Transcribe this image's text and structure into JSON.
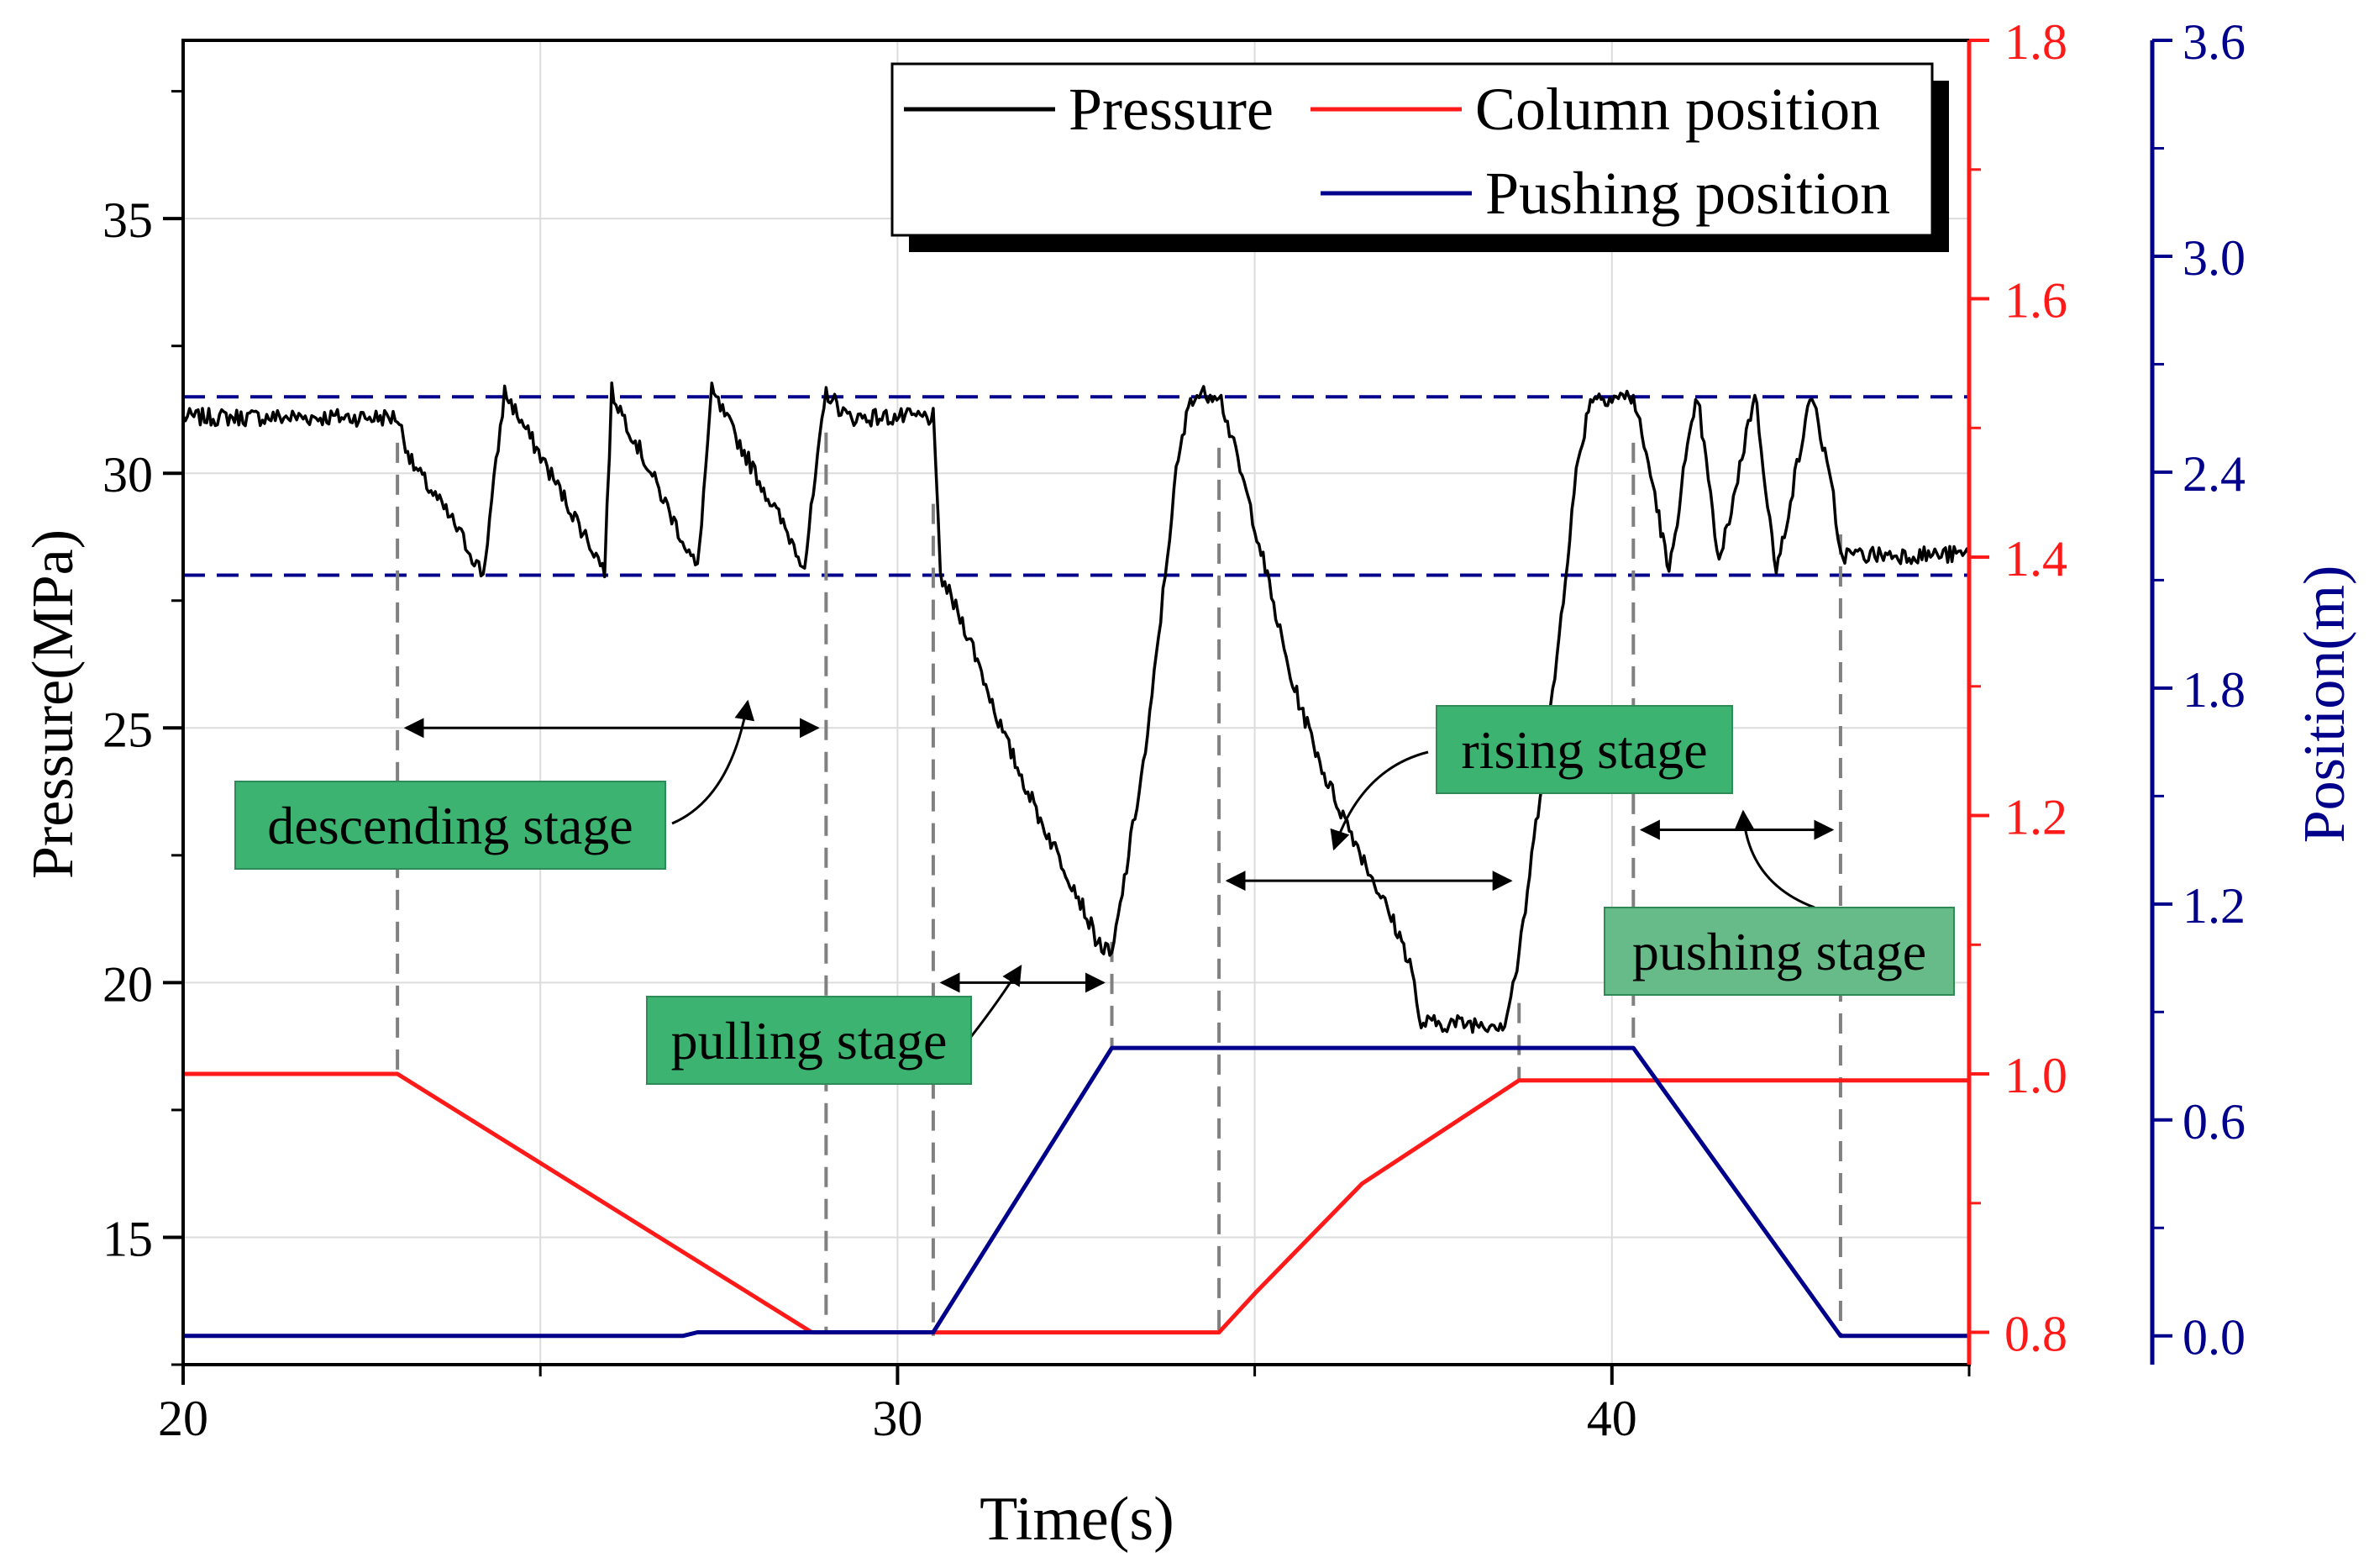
{
  "chart_data": {
    "type": "line",
    "xlabel": "Time(s)",
    "ylabel_left": "Pressure(MPa)",
    "ylabel_right": "Position(m)",
    "xlim": [
      20,
      45
    ],
    "ylim_left": [
      12.5,
      38.5
    ],
    "ylim_right_red": [
      0.775,
      1.8
    ],
    "ylim_right_blue": [
      -0.08,
      3.6
    ],
    "x_ticks": [
      20,
      30,
      40
    ],
    "y_ticks_left": [
      15,
      20,
      25,
      30,
      35
    ],
    "y_ticks_right_red": [
      "0.8",
      "1.0",
      "1.2",
      "1.4",
      "1.6",
      "1.8"
    ],
    "y_ticks_right_blue": [
      "0.0",
      "0.6",
      "1.2",
      "1.8",
      "2.4",
      "3.0",
      "3.6"
    ],
    "colors": {
      "pressure": "#000000",
      "column": "#ff1a1a",
      "pushing": "#00008b",
      "stage_box": "#3cb371",
      "guide": "#808080"
    },
    "series": [
      {
        "name": "Pressure",
        "axis": "left",
        "color": "#000000",
        "points": [
          [
            20,
            31.1
          ],
          [
            23,
            31.1
          ],
          [
            23.2,
            30.2
          ],
          [
            23.8,
            29
          ],
          [
            24.2,
            28
          ],
          [
            24.5,
            31.6
          ],
          [
            25.9,
            28.1
          ],
          [
            26,
            31.6
          ],
          [
            27.2,
            28.1
          ],
          [
            27.4,
            31.6
          ],
          [
            28.7,
            28.2
          ],
          [
            29,
            31.6
          ],
          [
            29.3,
            31.1
          ],
          [
            30.5,
            31.1
          ],
          [
            30.6,
            28
          ],
          [
            31,
            26.8
          ],
          [
            31.5,
            24.8
          ],
          [
            32,
            23.2
          ],
          [
            32.5,
            21.8
          ],
          [
            32.8,
            20.8
          ],
          [
            33,
            20.5
          ],
          [
            33.5,
            24.8
          ],
          [
            33.9,
            30
          ],
          [
            34.1,
            31.5
          ],
          [
            34.5,
            31.6
          ],
          [
            35,
            29
          ],
          [
            35.5,
            26
          ],
          [
            36,
            24
          ],
          [
            36.5,
            22.5
          ],
          [
            37,
            21
          ],
          [
            37.2,
            20.3
          ],
          [
            37.3,
            19.2
          ],
          [
            38.5,
            19.2
          ],
          [
            38.7,
            20.5
          ],
          [
            39.2,
            26
          ],
          [
            39.5,
            30
          ],
          [
            39.7,
            31.5
          ],
          [
            40.3,
            31.5
          ],
          [
            40.6,
            29.6
          ],
          [
            40.8,
            28
          ],
          [
            41,
            30
          ],
          [
            41.2,
            31.5
          ],
          [
            41.5,
            28.2
          ],
          [
            41.7,
            29.5
          ],
          [
            42,
            31.6
          ],
          [
            42.3,
            28
          ],
          [
            42.5,
            29.5
          ],
          [
            42.8,
            31.6
          ],
          [
            43.1,
            29.5
          ],
          [
            43.2,
            28.4
          ],
          [
            45,
            28.4
          ]
        ]
      },
      {
        "name": "Column position",
        "axis": "right_red",
        "color": "#ff1a1a",
        "points": [
          [
            20,
            1.0
          ],
          [
            23,
            1.0
          ],
          [
            28.8,
            0.8
          ],
          [
            34.5,
            0.8
          ],
          [
            35,
            0.83
          ],
          [
            36.5,
            0.915
          ],
          [
            38.7,
            0.995
          ],
          [
            40,
            0.995
          ],
          [
            41,
            0.995
          ],
          [
            45,
            0.995
          ]
        ]
      },
      {
        "name": "Pushing position",
        "axis": "right_blue",
        "color": "#00008b",
        "points": [
          [
            20,
            0.0
          ],
          [
            27,
            0.0
          ],
          [
            27.2,
            0.01
          ],
          [
            30.5,
            0.01
          ],
          [
            33,
            0.8
          ],
          [
            40.3,
            0.8
          ],
          [
            43.2,
            0.0
          ],
          [
            45,
            0.0
          ]
        ]
      }
    ],
    "reference_lines": [
      {
        "axis": "left",
        "y": 31.5,
        "style": "dashed",
        "color": "#00008b"
      },
      {
        "axis": "left",
        "y": 28.0,
        "style": "dashed",
        "color": "#00008b"
      }
    ],
    "guide_lines_x": [
      23,
      29,
      30.5,
      33,
      34.5,
      38.7,
      40.3,
      43.2
    ],
    "annotations": [
      {
        "label": "descending stage",
        "span": [
          23,
          29
        ]
      },
      {
        "label": "pulling stage",
        "span": [
          30.5,
          33
        ]
      },
      {
        "label": "rising stage",
        "span": [
          34.5,
          38.7
        ]
      },
      {
        "label": "pushing stage",
        "span": [
          40.3,
          43.2
        ]
      }
    ],
    "legend": {
      "position": "top-right",
      "entries": [
        "Pressure",
        "Column position",
        "Pushing position"
      ]
    }
  }
}
